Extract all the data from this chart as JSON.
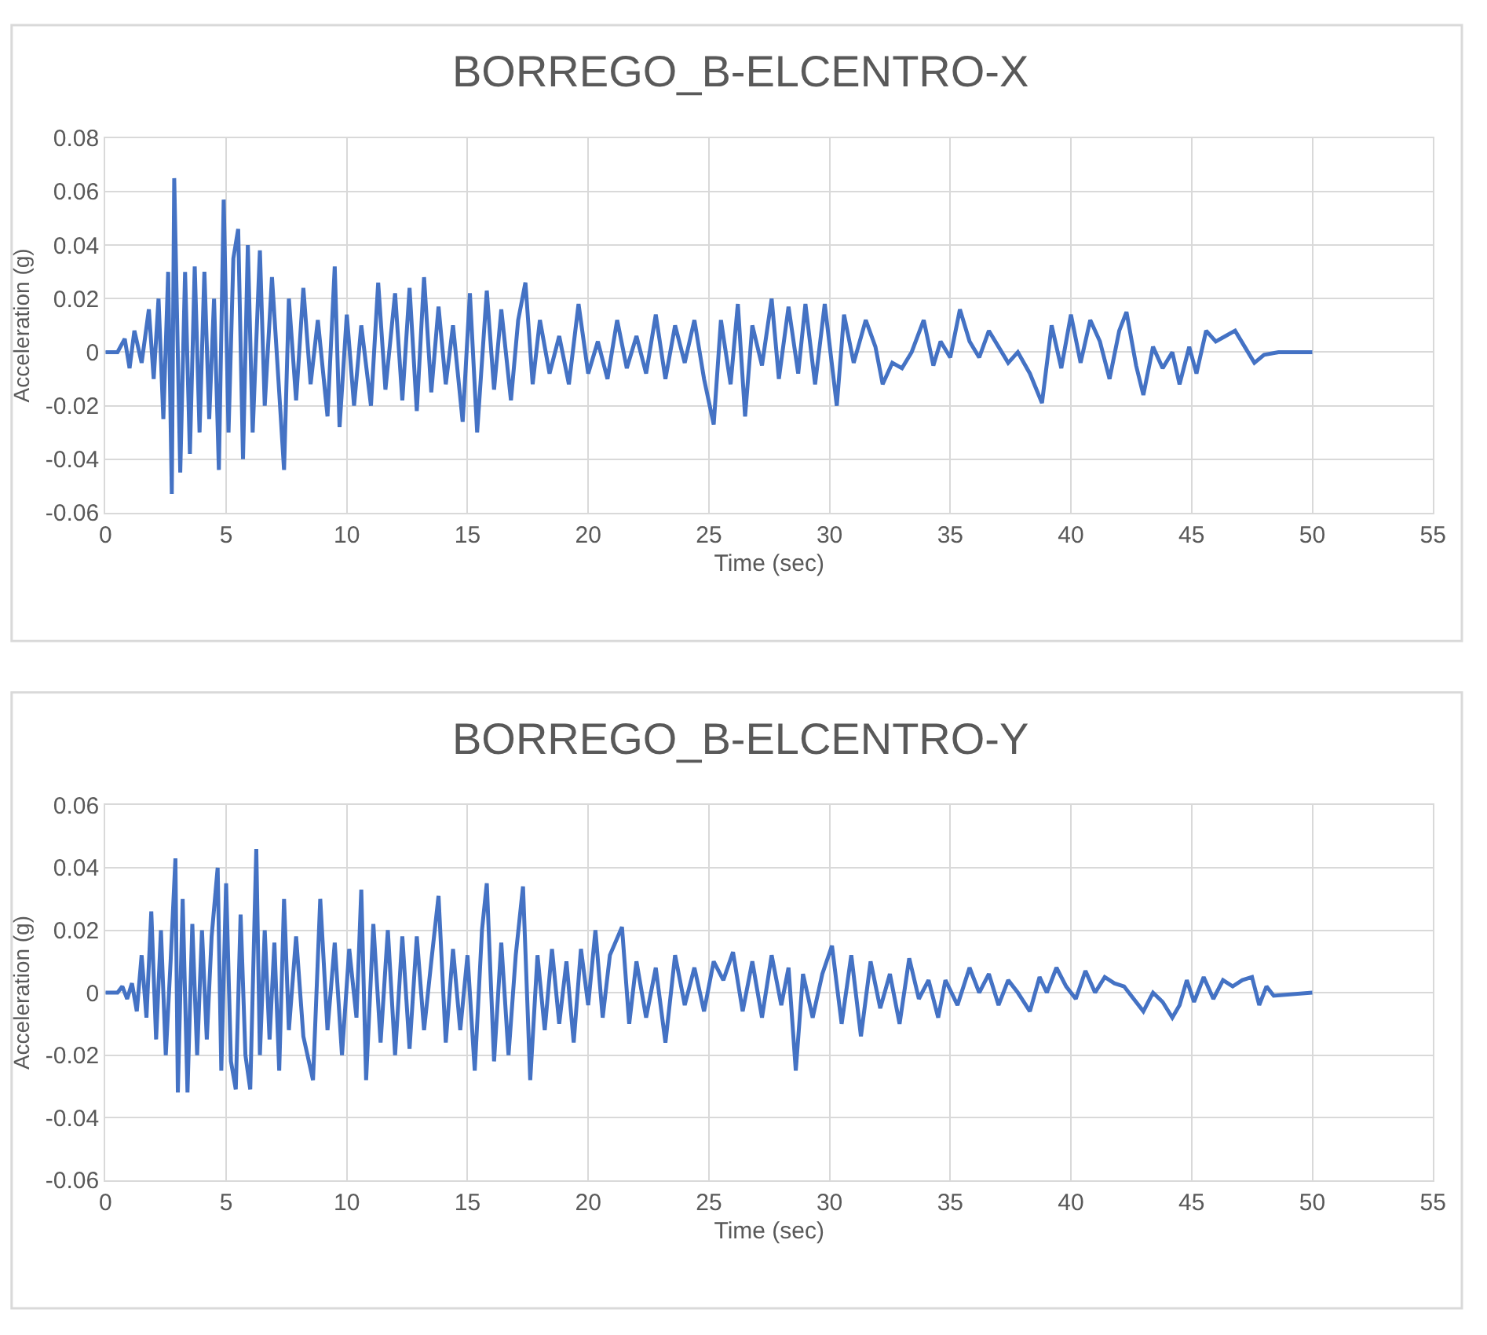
{
  "chart_data": [
    {
      "type": "line",
      "title": "BORREGO_B-ELCENTRO-X",
      "xlabel": "Time (sec)",
      "ylabel": "Acceleration (g)",
      "xlim": [
        0,
        55
      ],
      "xticks": [
        0,
        5,
        10,
        15,
        20,
        25,
        30,
        35,
        40,
        45,
        50,
        55
      ],
      "ylim": [
        -0.06,
        0.08
      ],
      "yticks": [
        -0.06,
        -0.04,
        -0.02,
        0,
        0.02,
        0.04,
        0.06,
        0.08
      ],
      "grid": true,
      "marker": "none",
      "line_style": "solid",
      "series": [
        {
          "color": "#4472c4",
          "x": [
            0,
            0.5,
            0.8,
            1.0,
            1.2,
            1.5,
            1.8,
            2.0,
            2.2,
            2.4,
            2.6,
            2.75,
            2.85,
            3.1,
            3.3,
            3.5,
            3.7,
            3.9,
            4.1,
            4.3,
            4.5,
            4.7,
            4.9,
            5.1,
            5.3,
            5.5,
            5.7,
            5.9,
            6.1,
            6.4,
            6.6,
            6.9,
            7.2,
            7.4,
            7.6,
            7.9,
            8.2,
            8.5,
            8.8,
            9.2,
            9.5,
            9.7,
            10.0,
            10.3,
            10.6,
            11.0,
            11.3,
            11.6,
            12.0,
            12.3,
            12.6,
            12.9,
            13.2,
            13.5,
            13.8,
            14.1,
            14.4,
            14.8,
            15.1,
            15.4,
            15.8,
            16.1,
            16.4,
            16.8,
            17.1,
            17.4,
            17.7,
            18.0,
            18.4,
            18.8,
            19.2,
            19.6,
            20.0,
            20.4,
            20.8,
            21.2,
            21.6,
            22.0,
            22.4,
            22.8,
            23.2,
            23.6,
            24.0,
            24.4,
            24.8,
            25.2,
            25.5,
            25.9,
            26.2,
            26.5,
            26.8,
            27.2,
            27.6,
            27.9,
            28.3,
            28.7,
            29.0,
            29.4,
            29.8,
            30.3,
            30.6,
            31.0,
            31.5,
            31.9,
            32.2,
            32.6,
            33.0,
            33.4,
            33.9,
            34.3,
            34.6,
            35.0,
            35.4,
            35.8,
            36.2,
            36.6,
            37.0,
            37.4,
            37.8,
            38.3,
            38.8,
            39.2,
            39.6,
            40.0,
            40.4,
            40.8,
            41.2,
            41.6,
            42.0,
            42.3,
            42.7,
            43.0,
            43.4,
            43.8,
            44.2,
            44.5,
            44.9,
            45.2,
            45.6,
            46.0,
            46.4,
            46.8,
            47.2,
            47.6,
            48.0,
            48.6,
            50
          ],
          "values": [
            0,
            0,
            0.005,
            -0.006,
            0.008,
            -0.004,
            0.016,
            -0.01,
            0.02,
            -0.025,
            0.03,
            -0.053,
            0.065,
            -0.045,
            0.03,
            -0.038,
            0.032,
            -0.03,
            0.03,
            -0.025,
            0.02,
            -0.044,
            0.057,
            -0.03,
            0.035,
            0.046,
            -0.04,
            0.04,
            -0.03,
            0.038,
            -0.02,
            0.028,
            -0.015,
            -0.044,
            0.02,
            -0.018,
            0.024,
            -0.012,
            0.012,
            -0.024,
            0.032,
            -0.028,
            0.014,
            -0.02,
            0.01,
            -0.02,
            0.026,
            -0.014,
            0.022,
            -0.018,
            0.024,
            -0.022,
            0.028,
            -0.015,
            0.017,
            -0.012,
            0.01,
            -0.026,
            0.022,
            -0.03,
            0.023,
            -0.014,
            0.016,
            -0.018,
            0.012,
            0.026,
            -0.012,
            0.012,
            -0.008,
            0.006,
            -0.012,
            0.018,
            -0.008,
            0.004,
            -0.01,
            0.012,
            -0.006,
            0.006,
            -0.008,
            0.014,
            -0.01,
            0.01,
            -0.004,
            0.012,
            -0.01,
            -0.027,
            0.012,
            -0.012,
            0.018,
            -0.024,
            0.01,
            -0.005,
            0.02,
            -0.01,
            0.017,
            -0.008,
            0.018,
            -0.012,
            0.018,
            -0.02,
            0.014,
            -0.004,
            0.012,
            0.002,
            -0.012,
            -0.004,
            -0.006,
            0,
            0.012,
            -0.005,
            0.004,
            -0.002,
            0.016,
            0.004,
            -0.002,
            0.008,
            0.002,
            -0.004,
            0,
            -0.008,
            -0.019,
            0.01,
            -0.006,
            0.014,
            -0.004,
            0.012,
            0.004,
            -0.01,
            0.008,
            0.015,
            -0.005,
            -0.016,
            0.002,
            -0.006,
            0,
            -0.012,
            0.002,
            -0.008,
            0.008,
            0.004,
            0.006,
            0.008,
            0.002,
            -0.004,
            -0.001,
            0,
            0
          ]
        }
      ]
    },
    {
      "type": "line",
      "title": "BORREGO_B-ELCENTRO-Y",
      "xlabel": "Time (sec)",
      "ylabel": "Acceleration (g)",
      "xlim": [
        0,
        55
      ],
      "xticks": [
        0,
        5,
        10,
        15,
        20,
        25,
        30,
        35,
        40,
        45,
        50,
        55
      ],
      "ylim": [
        -0.06,
        0.06
      ],
      "yticks": [
        -0.06,
        -0.04,
        -0.02,
        0,
        0.02,
        0.04,
        0.06
      ],
      "grid": true,
      "marker": "none",
      "line_style": "solid",
      "series": [
        {
          "color": "#4472c4",
          "x": [
            0,
            0.5,
            0.7,
            0.9,
            1.1,
            1.3,
            1.5,
            1.7,
            1.9,
            2.1,
            2.3,
            2.5,
            2.7,
            2.9,
            3.0,
            3.2,
            3.4,
            3.6,
            3.8,
            4.0,
            4.2,
            4.4,
            4.65,
            4.8,
            5.0,
            5.2,
            5.4,
            5.6,
            5.8,
            6.0,
            6.25,
            6.4,
            6.6,
            6.8,
            7.0,
            7.2,
            7.4,
            7.6,
            7.9,
            8.2,
            8.6,
            8.9,
            9.2,
            9.5,
            9.8,
            10.1,
            10.4,
            10.6,
            10.8,
            11.1,
            11.4,
            11.7,
            12.0,
            12.3,
            12.6,
            12.9,
            13.2,
            13.5,
            13.8,
            14.1,
            14.4,
            14.7,
            15.0,
            15.3,
            15.6,
            15.8,
            16.1,
            16.4,
            16.7,
            17.0,
            17.3,
            17.6,
            17.9,
            18.2,
            18.5,
            18.8,
            19.1,
            19.4,
            19.7,
            20.0,
            20.3,
            20.6,
            20.9,
            21.4,
            21.7,
            22.0,
            22.4,
            22.8,
            23.2,
            23.6,
            24.0,
            24.4,
            24.8,
            25.2,
            25.6,
            26.0,
            26.4,
            26.8,
            27.2,
            27.6,
            28.0,
            28.3,
            28.6,
            28.9,
            29.3,
            29.7,
            30.1,
            30.5,
            30.9,
            31.3,
            31.7,
            32.1,
            32.5,
            32.9,
            33.3,
            33.7,
            34.1,
            34.5,
            34.8,
            35.3,
            35.8,
            36.2,
            36.6,
            37.0,
            37.4,
            37.8,
            38.3,
            38.7,
            39.0,
            39.4,
            39.8,
            40.2,
            40.6,
            41.0,
            41.4,
            41.8,
            42.2,
            42.6,
            43.0,
            43.4,
            43.8,
            44.2,
            44.5,
            44.8,
            45.1,
            45.5,
            45.9,
            46.3,
            46.7,
            47.1,
            47.5,
            47.8,
            48.1,
            48.4,
            50
          ],
          "values": [
            0,
            0,
            0.002,
            -0.002,
            0.003,
            -0.006,
            0.012,
            -0.008,
            0.026,
            -0.015,
            0.02,
            -0.02,
            0.01,
            0.043,
            -0.032,
            0.03,
            -0.032,
            0.022,
            -0.02,
            0.02,
            -0.015,
            0.018,
            0.04,
            -0.025,
            0.035,
            -0.022,
            -0.031,
            0.025,
            -0.02,
            -0.031,
            0.046,
            -0.02,
            0.02,
            -0.015,
            0.016,
            -0.025,
            0.03,
            -0.012,
            0.018,
            -0.014,
            -0.028,
            0.03,
            -0.012,
            0.016,
            -0.02,
            0.014,
            -0.008,
            0.033,
            -0.028,
            0.022,
            -0.016,
            0.02,
            -0.02,
            0.018,
            -0.018,
            0.018,
            -0.012,
            0.01,
            0.031,
            -0.016,
            0.014,
            -0.012,
            0.012,
            -0.025,
            0.02,
            0.035,
            -0.022,
            0.016,
            -0.02,
            0.012,
            0.034,
            -0.028,
            0.012,
            -0.012,
            0.014,
            -0.01,
            0.01,
            -0.016,
            0.014,
            -0.004,
            0.02,
            -0.008,
            0.012,
            0.021,
            -0.01,
            0.01,
            -0.008,
            0.008,
            -0.016,
            0.012,
            -0.004,
            0.008,
            -0.006,
            0.01,
            0.004,
            0.013,
            -0.006,
            0.01,
            -0.008,
            0.012,
            -0.004,
            0.008,
            -0.025,
            0.006,
            -0.008,
            0.006,
            0.015,
            -0.01,
            0.012,
            -0.014,
            0.01,
            -0.005,
            0.006,
            -0.01,
            0.011,
            -0.002,
            0.004,
            -0.008,
            0.004,
            -0.004,
            0.008,
            0,
            0.006,
            -0.004,
            0.004,
            0,
            -0.006,
            0.005,
            0,
            0.008,
            0.002,
            -0.002,
            0.007,
            0,
            0.005,
            0.003,
            0.002,
            -0.002,
            -0.006,
            0,
            -0.003,
            -0.008,
            -0.004,
            0.004,
            -0.003,
            0.005,
            -0.002,
            0.004,
            0.002,
            0.004,
            0.005,
            -0.004,
            0.002,
            -0.001,
            0
          ]
        }
      ]
    }
  ]
}
